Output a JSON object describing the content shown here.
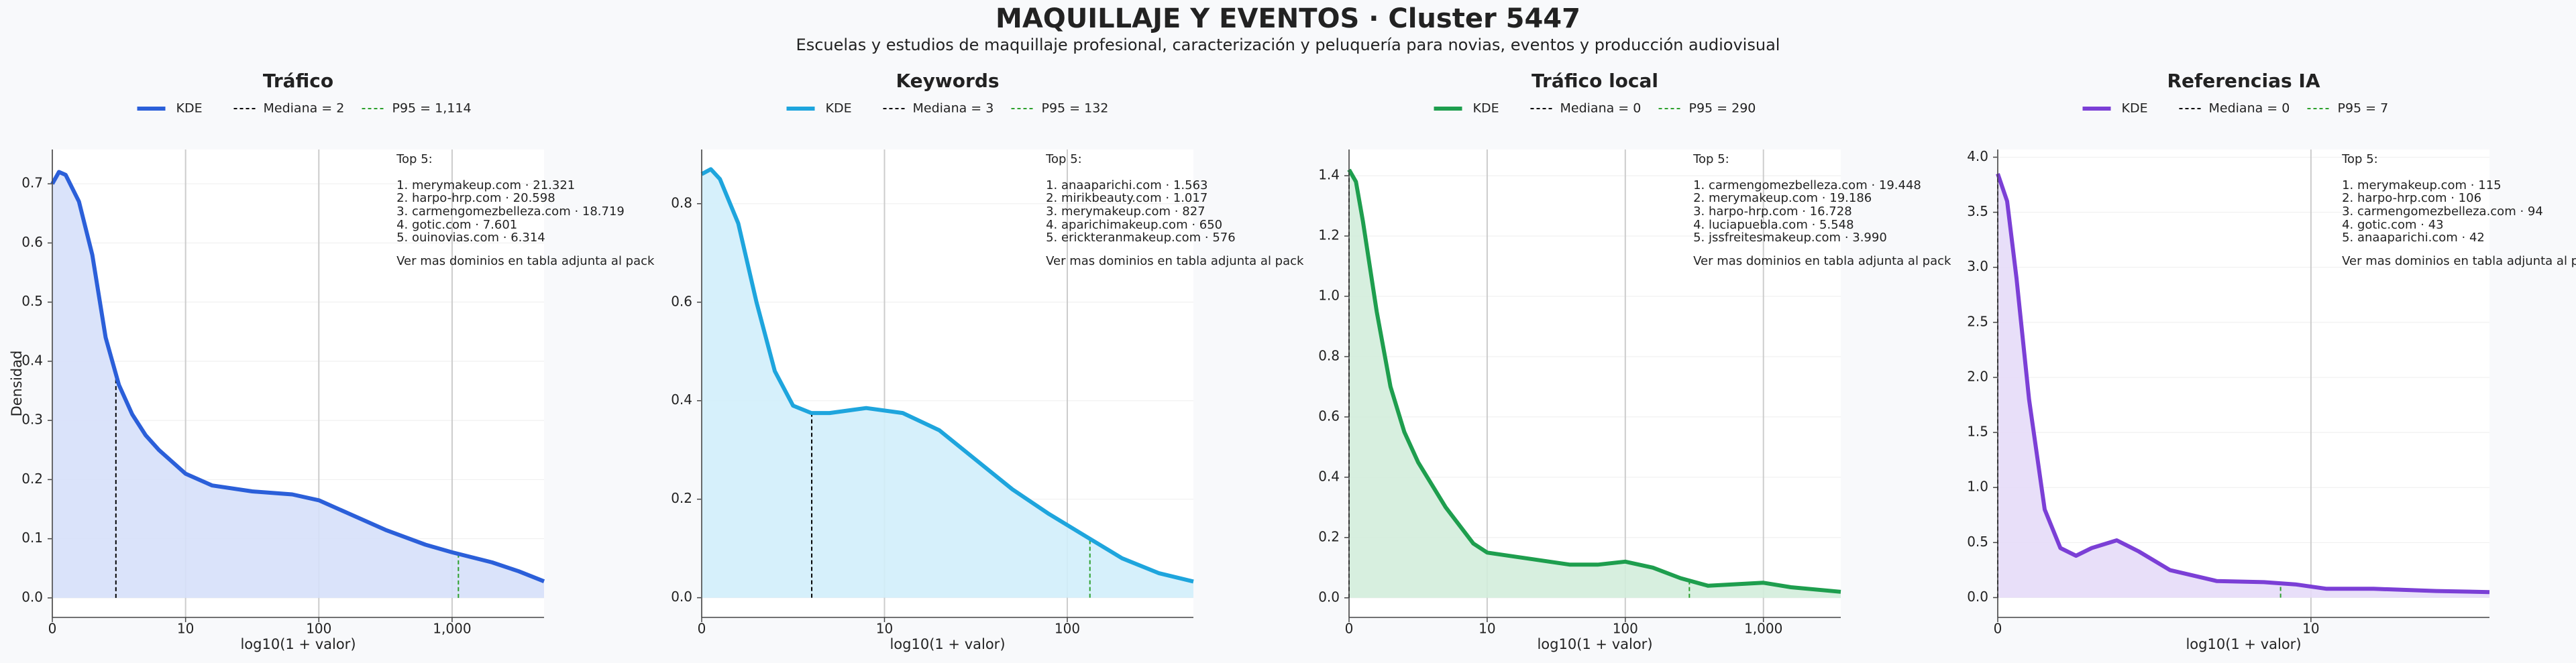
{
  "title": "MAQUILLAJE Y EVENTOS · Cluster 5447",
  "subtitle": "Escuelas y estudios de maquillaje profesional, caracterización y peluquería para novias, eventos y producción audiovisual",
  "chart_data": [
    {
      "type": "area",
      "title": "Tráfico",
      "xlabel": "log10(1 + valor)",
      "ylabel": "Densidad",
      "grid": true,
      "x": [
        0,
        0.05,
        0.1,
        0.2,
        0.3,
        0.4,
        0.5,
        0.6,
        0.7,
        0.8,
        1.0,
        1.2,
        1.5,
        1.8,
        2.0,
        2.2,
        2.5,
        2.8,
        3.0,
        3.3,
        3.5,
        3.69
      ],
      "series": [
        {
          "name": "KDE",
          "color": "#2b5fd9",
          "fill": "#d6e0fa",
          "values": [
            0.7,
            0.72,
            0.715,
            0.67,
            0.58,
            0.44,
            0.36,
            0.31,
            0.275,
            0.25,
            0.21,
            0.19,
            0.18,
            0.175,
            0.165,
            0.145,
            0.115,
            0.09,
            0.077,
            0.06,
            0.045,
            0.028
          ]
        }
      ],
      "median": {
        "value": 2,
        "label": "Mediana = 2"
      },
      "p95": {
        "value": 1114,
        "label": "P95 = 1,114"
      },
      "xlim": [
        0,
        3.69
      ],
      "ylim": [
        -0.033,
        0.758
      ],
      "xticks": [
        0,
        {
          "value": 1,
          "label": "10"
        },
        {
          "value": 2,
          "label": "100"
        },
        {
          "value": 3,
          "label": "1,000"
        }
      ],
      "yticks": [
        {
          "value": 0,
          "label": "0.0"
        },
        0.1,
        0.2,
        0.3,
        0.4,
        0.5,
        0.6,
        0.7
      ],
      "annotation": [
        "Top 5:",
        "1. merymakeup.com · 21.321",
        "2. harpo-hrp.com · 20.598",
        "3. carmengomezbelleza.com · 18.719",
        "4. gotic.com · 7.601",
        "5. ouinovias.com · 6.314",
        "Ver mas dominios en tabla adjunta al pack"
      ]
    },
    {
      "type": "area",
      "title": "Keywords",
      "xlabel": "log10(1 + valor)",
      "grid": true,
      "x": [
        0,
        0.05,
        0.1,
        0.2,
        0.3,
        0.4,
        0.5,
        0.6,
        0.7,
        0.9,
        1.1,
        1.3,
        1.5,
        1.7,
        1.9,
        2.1,
        2.3,
        2.5,
        2.69
      ],
      "series": [
        {
          "name": "KDE",
          "color": "#1ea5dd",
          "fill": "#d2eefb",
          "values": [
            0.86,
            0.87,
            0.85,
            0.76,
            0.6,
            0.46,
            0.39,
            0.375,
            0.375,
            0.385,
            0.375,
            0.34,
            0.28,
            0.22,
            0.17,
            0.125,
            0.08,
            0.05,
            0.033
          ]
        }
      ],
      "median": {
        "value": 3,
        "label": "Mediana = 3"
      },
      "p95": {
        "value": 132,
        "label": "P95 = 132"
      },
      "xlim": [
        0,
        2.69
      ],
      "ylim": [
        -0.04,
        0.91
      ],
      "xticks": [
        0,
        {
          "value": 1,
          "label": "10"
        },
        {
          "value": 2,
          "label": "100"
        }
      ],
      "yticks": [
        {
          "value": 0,
          "label": "0.0"
        },
        0.2,
        0.4,
        0.6,
        0.8
      ],
      "annotation": [
        "Top 5:",
        "1. anaaparichi.com · 1.563",
        "2. mirikbeauty.com · 1.017",
        "3. merymakeup.com · 827",
        "4. aparichimakeup.com · 650",
        "5. erickteranmakeup.com · 576",
        "Ver mas dominios en tabla adjunta al pack"
      ]
    },
    {
      "type": "area",
      "title": "Tráfico local",
      "xlabel": "log10(1 + valor)",
      "grid": true,
      "x": [
        0,
        0.05,
        0.1,
        0.2,
        0.3,
        0.4,
        0.5,
        0.7,
        0.9,
        1.0,
        1.3,
        1.6,
        1.8,
        2.0,
        2.2,
        2.4,
        2.6,
        2.8,
        3.0,
        3.2,
        3.56
      ],
      "series": [
        {
          "name": "KDE",
          "color": "#1e9e4e",
          "fill": "#d3eddb",
          "values": [
            1.42,
            1.38,
            1.25,
            0.95,
            0.7,
            0.55,
            0.45,
            0.3,
            0.18,
            0.15,
            0.13,
            0.11,
            0.11,
            0.12,
            0.1,
            0.065,
            0.04,
            0.045,
            0.05,
            0.035,
            0.02
          ]
        }
      ],
      "median": {
        "value": 0,
        "label": "Mediana = 0"
      },
      "p95": {
        "value": 290,
        "label": "P95 = 290"
      },
      "xlim": [
        0,
        3.56
      ],
      "ylim": [
        -0.065,
        1.487
      ],
      "xticks": [
        0,
        {
          "value": 1,
          "label": "10"
        },
        {
          "value": 2,
          "label": "100"
        },
        {
          "value": 3,
          "label": "1,000"
        }
      ],
      "yticks": [
        {
          "value": 0,
          "label": "0.0"
        },
        0.2,
        0.4,
        0.6,
        0.8,
        {
          "value": 1,
          "label": "1.0"
        },
        1.2,
        1.4
      ],
      "annotation": [
        "Top 5:",
        "1. carmengomezbelleza.com · 19.448",
        "2. merymakeup.com · 19.186",
        "3. harpo-hrp.com · 16.728",
        "4. luciapuebla.com · 5.548",
        "5. jssfreitesmakeup.com · 3.990",
        "Ver mas dominios en tabla adjunta al pack"
      ]
    },
    {
      "type": "area",
      "title": "Referencias IA",
      "xlabel": "log10(1 + valor)",
      "grid": true,
      "x": [
        0,
        0.03,
        0.06,
        0.1,
        0.15,
        0.2,
        0.25,
        0.3,
        0.38,
        0.45,
        0.55,
        0.7,
        0.85,
        0.95,
        1.05,
        1.2,
        1.4,
        1.57
      ],
      "series": [
        {
          "name": "KDE",
          "color": "#7b3fd6",
          "fill": "#e6dbf8",
          "values": [
            3.85,
            3.6,
            2.9,
            1.8,
            0.8,
            0.45,
            0.38,
            0.45,
            0.52,
            0.42,
            0.25,
            0.15,
            0.14,
            0.12,
            0.08,
            0.08,
            0.06,
            0.05
          ]
        }
      ],
      "median": {
        "value": 0,
        "label": "Mediana = 0"
      },
      "p95": {
        "value": 7,
        "label": "P95 = 7"
      },
      "xlim": [
        0,
        1.57
      ],
      "ylim": [
        -0.18,
        4.07
      ],
      "xticks": [
        0,
        {
          "value": 1,
          "label": "10"
        }
      ],
      "yticks": [
        {
          "value": 0,
          "label": "0.0"
        },
        0.5,
        {
          "value": 1,
          "label": "1.0"
        },
        1.5,
        {
          "value": 2,
          "label": "2.0"
        },
        2.5,
        {
          "value": 3,
          "label": "3.0"
        },
        3.5,
        {
          "value": 4,
          "label": "4.0"
        }
      ],
      "annotation": [
        "Top 5:",
        "1. merymakeup.com · 115",
        "2. harpo-hrp.com · 106",
        "3. carmengomezbelleza.com · 94",
        "4. gotic.com · 43",
        "5. anaaparichi.com · 42",
        "Ver mas dominios en tabla adjunta al pack"
      ]
    }
  ]
}
